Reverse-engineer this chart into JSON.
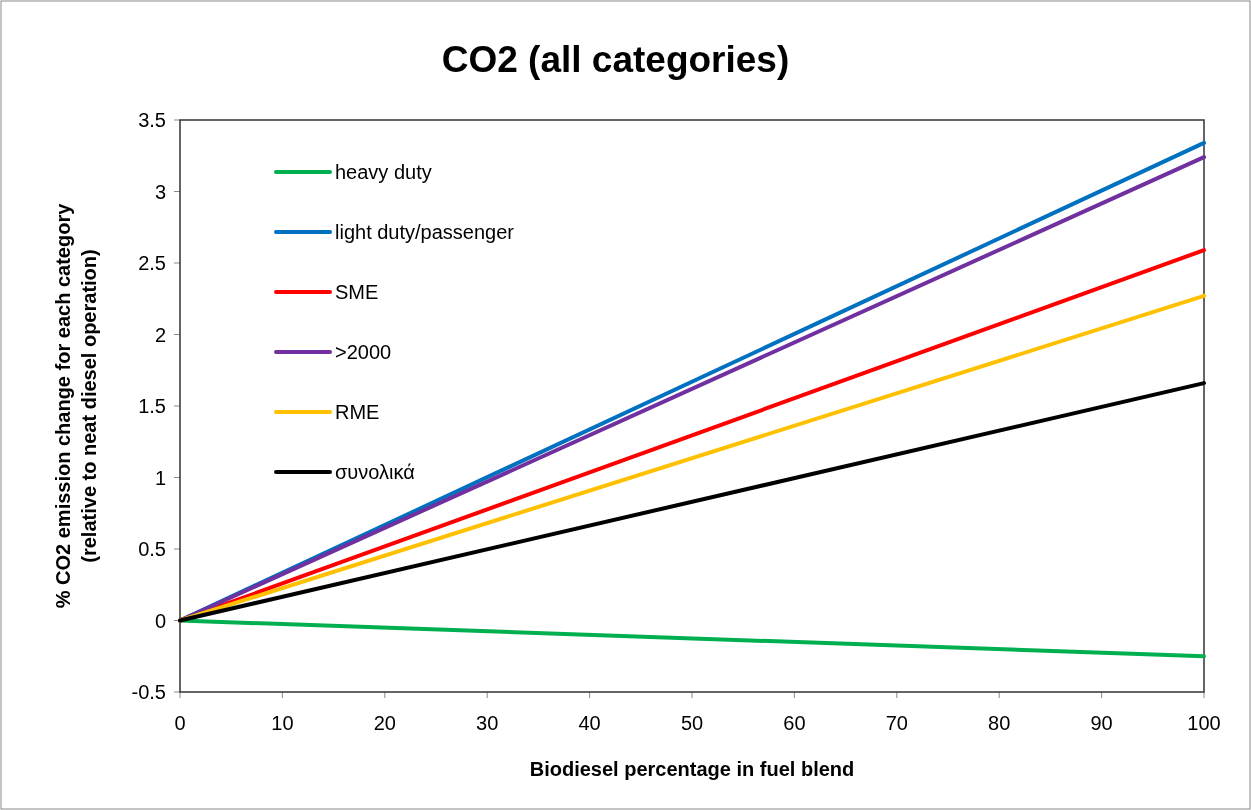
{
  "chart_data": {
    "type": "line",
    "title": "CO2 (all categories)",
    "xlabel": "Biodiesel percentage in fuel blend",
    "ylabel": "% CO2 emission change for each category\n(relative to neat diesel operation)",
    "x": [
      0,
      100
    ],
    "series": [
      {
        "name": "heavy duty",
        "color": "#00b050",
        "values": [
          0,
          -0.25
        ]
      },
      {
        "name": "light duty/passenger",
        "color": "#0070c0",
        "values": [
          0,
          3.34
        ]
      },
      {
        "name": "SME",
        "color": "#ff0000",
        "values": [
          0,
          2.59
        ]
      },
      {
        "name": ">2000",
        "color": "#7030a0",
        "values": [
          0,
          3.24
        ]
      },
      {
        "name": "RME",
        "color": "#ffc000",
        "values": [
          0,
          2.27
        ]
      },
      {
        "name": "συνολικά",
        "color": "#000000",
        "values": [
          0,
          1.66
        ]
      }
    ],
    "xlim": [
      0,
      100
    ],
    "xticks": [
      0,
      10,
      20,
      30,
      40,
      50,
      60,
      70,
      80,
      90,
      100
    ],
    "ylim": [
      -0.5,
      3.5
    ],
    "yticks": [
      -0.5,
      0,
      0.5,
      1,
      1.5,
      2,
      2.5,
      3,
      3.5
    ],
    "grid": false,
    "legend": "top left",
    "marker": "none",
    "line_style": "solid"
  }
}
